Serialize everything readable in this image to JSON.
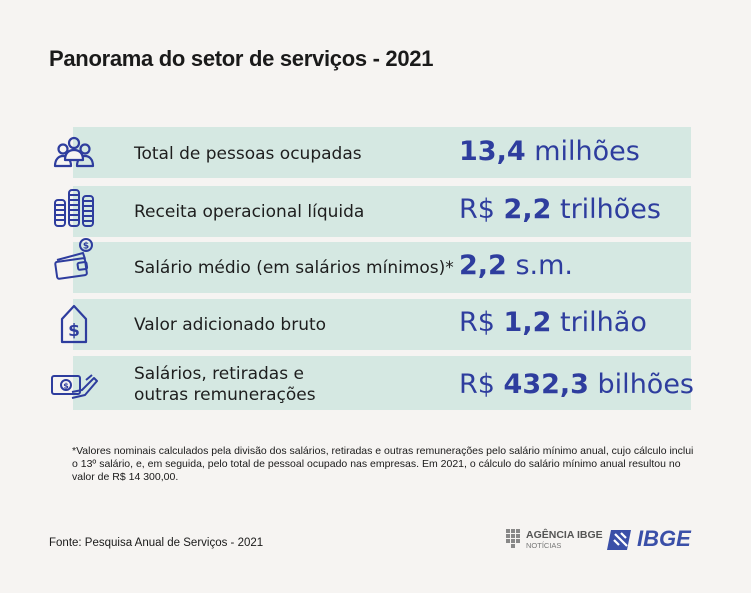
{
  "title": "Panorama do setor de serviços - 2021",
  "rows": [
    {
      "icon": "people-icon",
      "label": "Total de pessoas ocupadas",
      "prefix": "",
      "number": "13,4",
      "unit": "milhões"
    },
    {
      "icon": "coins-stack-icon",
      "label": "Receita operacional líquida",
      "prefix": "R$",
      "number": "2,2",
      "unit": "trilhões"
    },
    {
      "icon": "wallet-icon",
      "label": "Salário médio (em salários mínimos)*",
      "prefix": "",
      "number": "2,2",
      "unit": "s.m."
    },
    {
      "icon": "price-tag-icon",
      "label": "Valor adicionado bruto",
      "prefix": "R$",
      "number": "1,2",
      "unit": "trilhão"
    },
    {
      "icon": "hand-money-icon",
      "label_line1": "Salários, retiradas e",
      "label_line2": "outras remunerações",
      "prefix": "R$",
      "number": "432,3",
      "unit": "bilhões"
    }
  ],
  "note": "*Valores nominais calculados pela divisão dos salários, retiradas e outras remunerações pelo salário mínimo anual, cujo cálculo inclui o 13º salário, e, em seguida, pelo total de pessoal ocupado nas empresas. Em 2021, o cálculo do salário mínimo anual resultou no valor de R$ 14 300,00.",
  "source": "Fonte: Pesquisa Anual de Serviços - 2021",
  "logos": {
    "agencia_name": "AGÊNCIA IBGE",
    "agencia_sub": "NOTÍCIAS",
    "ibge": "IBGE"
  },
  "colors": {
    "row_bg": "#d5e8e2",
    "value": "#2e3d9e",
    "icon": "#2e3d9e"
  }
}
